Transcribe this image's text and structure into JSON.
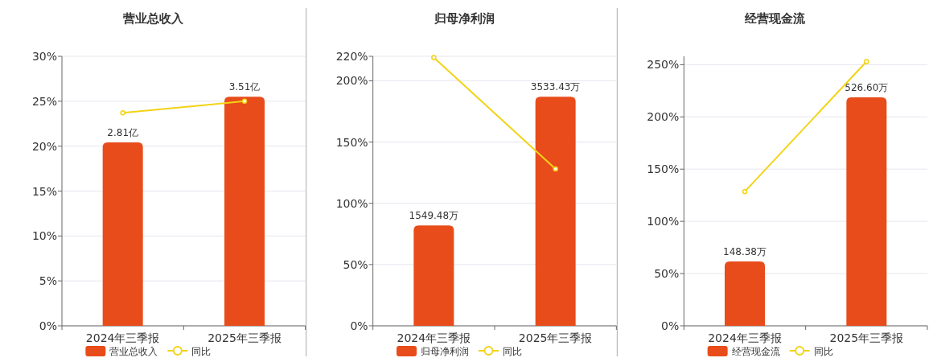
{
  "chart_data": [
    {
      "type": "bar",
      "title": "营业总收入",
      "categories": [
        "2024年三季报",
        "2025年三季报"
      ],
      "series": [
        {
          "name": "营业总收入",
          "axis": "y2",
          "color": "#e84c1a",
          "values": [
            2.81,
            3.51
          ],
          "value_labels": [
            "2.81亿",
            "3.51亿"
          ]
        },
        {
          "name": "同比",
          "type": "line",
          "color": "#f2d316",
          "values": [
            23.7,
            25.0
          ],
          "marker": "circle"
        }
      ],
      "ylim": [
        0,
        30
      ],
      "yticks": [
        {
          "value": 0,
          "label": "0%"
        },
        {
          "value": 5,
          "label": "5%"
        },
        {
          "value": 10,
          "label": "10%"
        },
        {
          "value": 15,
          "label": "15%"
        },
        {
          "value": 20,
          "label": "20%"
        },
        {
          "value": 25,
          "label": "25%"
        },
        {
          "value": 30,
          "label": "30%"
        }
      ],
      "y2lim": [
        0,
        4.13
      ],
      "grid": "y",
      "legend": "bottom"
    },
    {
      "type": "bar",
      "title": "归母净利润",
      "categories": [
        "2024年三季报",
        "2025年三季报"
      ],
      "series": [
        {
          "name": "归母净利润",
          "axis": "y2",
          "color": "#e84c1a",
          "values": [
            1549.48,
            3533.43
          ],
          "value_labels": [
            "1549.48万",
            "3533.43万"
          ]
        },
        {
          "name": "同比",
          "type": "line",
          "color": "#f2d316",
          "values": [
            219,
            128
          ],
          "marker": "circle"
        }
      ],
      "ylim": [
        0,
        220
      ],
      "yticks": [
        {
          "value": 0,
          "label": "0%"
        },
        {
          "value": 50,
          "label": "50%"
        },
        {
          "value": 100,
          "label": "100%"
        },
        {
          "value": 150,
          "label": "150%"
        },
        {
          "value": 200,
          "label": "200%"
        },
        {
          "value": 220,
          "label": "220%"
        }
      ],
      "y2lim": [
        0,
        4157
      ],
      "grid": "y",
      "legend": "bottom"
    },
    {
      "type": "bar",
      "title": "经营现金流",
      "categories": [
        "2024年三季报",
        "2025年三季报"
      ],
      "series": [
        {
          "name": "经营现金流",
          "axis": "y2",
          "color": "#e84c1a",
          "values": [
            148.38,
            526.6
          ],
          "value_labels": [
            "148.38万",
            "526.60万"
          ]
        },
        {
          "name": "同比",
          "type": "line",
          "color": "#f2d316",
          "values": [
            128.5,
            253
          ],
          "marker": "circle"
        }
      ],
      "ylim": [
        0,
        258
      ],
      "yticks": [
        {
          "value": 0,
          "label": "0%"
        },
        {
          "value": 50,
          "label": "50%"
        },
        {
          "value": 100,
          "label": "100%"
        },
        {
          "value": 150,
          "label": "150%"
        },
        {
          "value": 200,
          "label": "200%"
        },
        {
          "value": 250,
          "label": "250%"
        }
      ],
      "y2lim": [
        0,
        621
      ],
      "grid": "y",
      "legend": "bottom"
    }
  ]
}
